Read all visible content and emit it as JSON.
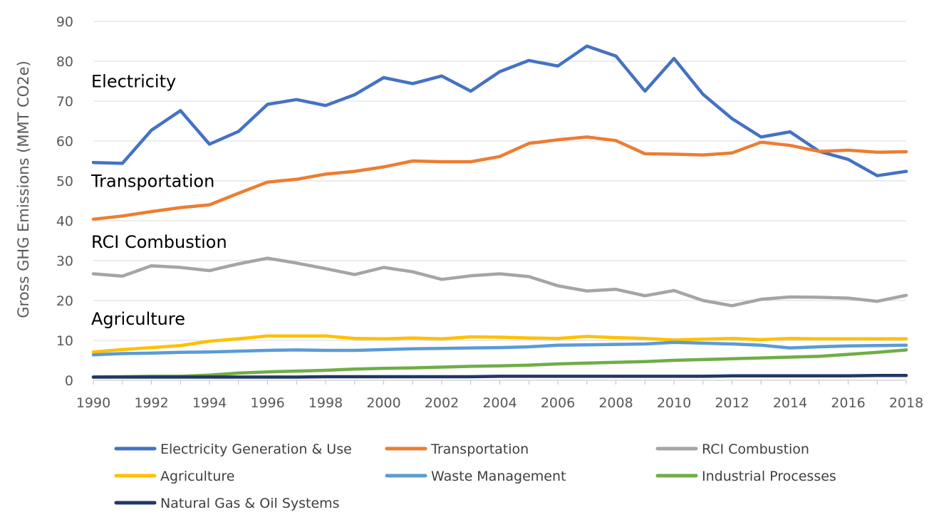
{
  "chart_data": {
    "type": "line",
    "ylabel": "Gross GHG Emissions (MMT CO2e)",
    "xlabel": "",
    "ylim": [
      0,
      90
    ],
    "yticks": [
      0,
      10,
      20,
      30,
      40,
      50,
      60,
      70,
      80,
      90
    ],
    "xlim": [
      1990,
      2018
    ],
    "xticks": [
      1990,
      1992,
      1994,
      1996,
      1998,
      2000,
      2002,
      2004,
      2006,
      2008,
      2010,
      2012,
      2014,
      2016,
      2018
    ],
    "grid": "horizontal",
    "legend_placement": "bottom",
    "x": [
      1990,
      1991,
      1992,
      1993,
      1994,
      1995,
      1996,
      1997,
      1998,
      1999,
      2000,
      2001,
      2002,
      2003,
      2004,
      2005,
      2006,
      2007,
      2008,
      2009,
      2010,
      2011,
      2012,
      2013,
      2014,
      2015,
      2016,
      2017,
      2018
    ],
    "series": [
      {
        "name": "Electricity Generation & Use",
        "color": "#4472c4",
        "values": [
          54.6,
          54.4,
          62.7,
          67.6,
          59.2,
          62.4,
          69.2,
          70.4,
          68.9,
          71.6,
          75.9,
          74.4,
          76.3,
          72.5,
          77.4,
          80.2,
          78.8,
          83.8,
          81.3,
          72.5,
          80.7,
          71.7,
          65.6,
          61.0,
          62.3,
          57.4,
          55.4,
          51.3,
          52.4
        ]
      },
      {
        "name": "Transportation",
        "color": "#ed7d31",
        "values": [
          40.4,
          41.2,
          42.3,
          43.3,
          44.0,
          46.9,
          49.7,
          50.4,
          51.7,
          52.4,
          53.5,
          55.0,
          54.8,
          54.8,
          56.1,
          59.4,
          60.3,
          61.0,
          60.1,
          56.8,
          56.7,
          56.5,
          57.0,
          59.7,
          58.9,
          57.4,
          57.7,
          57.2,
          57.3
        ]
      },
      {
        "name": "RCI Combustion",
        "color": "#a5a5a5",
        "values": [
          26.7,
          26.1,
          28.7,
          28.3,
          27.5,
          29.2,
          30.6,
          29.4,
          28.0,
          26.5,
          28.3,
          27.2,
          25.3,
          26.2,
          26.7,
          26.0,
          23.7,
          22.4,
          22.8,
          21.2,
          22.5,
          20.0,
          18.7,
          20.3,
          20.9,
          20.8,
          20.6,
          19.8,
          21.3
        ]
      },
      {
        "name": "Agriculture",
        "color": "#ffc000",
        "values": [
          7.1,
          7.7,
          8.2,
          8.7,
          9.8,
          10.4,
          11.1,
          11.1,
          11.1,
          10.5,
          10.4,
          10.6,
          10.4,
          10.9,
          10.8,
          10.6,
          10.5,
          11.0,
          10.7,
          10.5,
          10.1,
          10.3,
          10.5,
          10.2,
          10.5,
          10.4,
          10.4,
          10.4,
          10.4
        ]
      },
      {
        "name": "Waste Management",
        "color": "#5b9bd5",
        "values": [
          6.4,
          6.7,
          6.8,
          7.0,
          7.1,
          7.3,
          7.5,
          7.6,
          7.5,
          7.5,
          7.7,
          7.9,
          8.0,
          8.1,
          8.2,
          8.4,
          8.8,
          8.9,
          9.0,
          9.1,
          9.5,
          9.3,
          9.1,
          8.8,
          8.1,
          8.4,
          8.6,
          8.7,
          8.8
        ]
      },
      {
        "name": "Industrial Processes",
        "color": "#70ad47",
        "values": [
          0.8,
          0.9,
          1.0,
          1.0,
          1.3,
          1.8,
          2.1,
          2.3,
          2.5,
          2.8,
          3.0,
          3.1,
          3.3,
          3.5,
          3.6,
          3.8,
          4.1,
          4.3,
          4.5,
          4.7,
          5.0,
          5.2,
          5.4,
          5.6,
          5.8,
          6.0,
          6.5,
          7.0,
          7.6
        ]
      },
      {
        "name": "Natural Gas & Oil Systems",
        "color": "#203864",
        "values": [
          0.8,
          0.8,
          0.8,
          0.8,
          0.8,
          0.8,
          0.8,
          0.8,
          0.9,
          0.9,
          0.9,
          0.9,
          0.9,
          0.9,
          1.0,
          1.0,
          1.0,
          1.0,
          1.0,
          1.0,
          1.0,
          1.0,
          1.1,
          1.1,
          1.1,
          1.1,
          1.1,
          1.2,
          1.2
        ]
      }
    ],
    "annotations": [
      {
        "text": "Electricity",
        "x": 1990,
        "y": 73.5
      },
      {
        "text": "Transportation",
        "x": 1990,
        "y": 48.5
      },
      {
        "text": "RCI Combustion",
        "x": 1990,
        "y": 33.2
      },
      {
        "text": "Agriculture",
        "x": 1990,
        "y": 13.9
      }
    ]
  }
}
